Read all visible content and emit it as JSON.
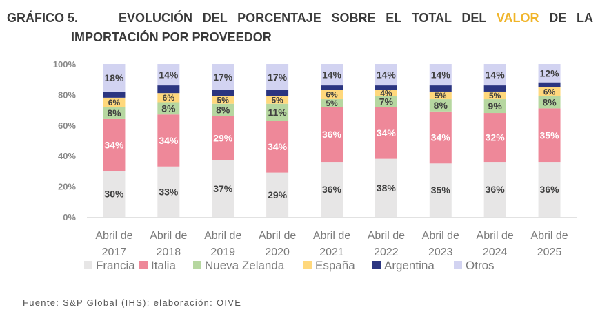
{
  "title": {
    "number": "GRÁFICO 5.",
    "line1_before": "EVOLUCIÓN DEL PORCENTAJE SOBRE EL TOTAL DEL",
    "line1_highlight": "VALOR",
    "line1_after": "DE LA",
    "line2": "IMPORTACIÓN POR PROVEEDOR",
    "highlight_color": "#f0b428"
  },
  "source": "Fuente: S&P Global (IHS); elaboración: OIVE",
  "chart_data": {
    "type": "bar",
    "stacked": true,
    "categories": [
      [
        "Abril de",
        "2017"
      ],
      [
        "Abril de",
        "2018"
      ],
      [
        "Abril de",
        "2019"
      ],
      [
        "Abril de",
        "2020"
      ],
      [
        "Abril de",
        "2021"
      ],
      [
        "Abril de",
        "2022"
      ],
      [
        "Abril de",
        "2023"
      ],
      [
        "Abril de",
        "2024"
      ],
      [
        "Abril de",
        "2025"
      ]
    ],
    "ylim": [
      0,
      100
    ],
    "yticks": [
      "0%",
      "20%",
      "40%",
      "60%",
      "80%",
      "100%"
    ],
    "legend_position": "bottom",
    "series": [
      {
        "name": "Francia",
        "color": "#e7e6e6",
        "label_color": "#404040",
        "values": [
          30,
          33,
          37,
          29,
          36,
          38,
          35,
          36,
          36
        ],
        "labeled": true
      },
      {
        "name": "Italia",
        "color": "#ee8899",
        "label_color": "#ffffff",
        "values": [
          34,
          34,
          29,
          34,
          36,
          34,
          34,
          32,
          35
        ],
        "labeled": true
      },
      {
        "name": "Nueva Zelanda",
        "color": "#b6d7a0",
        "label_color": "#404040",
        "values": [
          8,
          8,
          8,
          11,
          5,
          7,
          8,
          9,
          8
        ],
        "labeled": true
      },
      {
        "name": "España",
        "color": "#ffd87c",
        "label_color": "#404040",
        "values": [
          6,
          6,
          5,
          5,
          6,
          4,
          5,
          5,
          6
        ],
        "labeled": true
      },
      {
        "name": "Argentina",
        "color": "#2b3580",
        "label_color": "#ffffff",
        "values": [
          4,
          5,
          4,
          4,
          3,
          3,
          4,
          4,
          3
        ],
        "labeled": false
      },
      {
        "name": "Otros",
        "color": "#d2d3f1",
        "label_color": "#404040",
        "values": [
          18,
          14,
          17,
          17,
          14,
          14,
          14,
          14,
          12
        ],
        "labeled": true
      }
    ]
  }
}
